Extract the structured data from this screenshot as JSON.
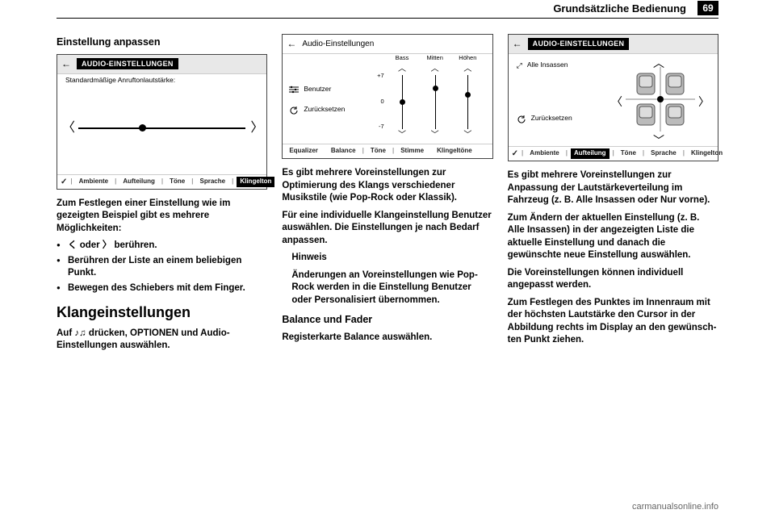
{
  "header": {
    "section_title": "Grundsätzliche Bedienung",
    "page_number": "69"
  },
  "col1": {
    "h3_adjust": "Einstellung anpassen",
    "ss1": {
      "title": "AUDIO-EINSTELLUNGEN",
      "subtitle": "Standardmäßige Anruftonlautstärke:",
      "slider_pos_pct": 36,
      "tabs": {
        "check": "✓",
        "t1": "Ambiente",
        "t2": "Aufteilung",
        "t3": "Töne",
        "t4": "Sprache",
        "t5": "Klingelton"
      }
    },
    "p1": "Zum Festlegen einer Einstellung wie im gezeigten Beispiel gibt es mehrere Möglichkeiten:",
    "li1": "く oder 〉 berühren.",
    "li2": "Berühren der Liste an einem beliebigen Punkt.",
    "li3": "Bewegen des Schiebers mit dem Finger.",
    "h2_sound": "Klangeinstellungen",
    "p2": "Auf ♪♫ drücken, OPTIONEN und Audio-Einstellungen auswählen."
  },
  "col2": {
    "ss2": {
      "title": "Audio-Einstellungen",
      "left_user": "Benutzer",
      "left_reset": "Zurücksetzen",
      "axis": {
        "top": "+7",
        "mid": "0",
        "bot": "-7"
      },
      "cols": [
        {
          "label": "Bass",
          "knob_pct": 48
        },
        {
          "label": "Mitten",
          "knob_pct": 20
        },
        {
          "label": "Höhen",
          "knob_pct": 34
        }
      ],
      "tabs": {
        "t1": "Equalizer",
        "t2": "Balance",
        "t3": "Töne",
        "t4": "Stimme",
        "t5": "Klingeltöne"
      }
    },
    "p1": "Es gibt mehrere Voreinstellungen zur Optimierung des Klangs verschiede­ner Musikstile (wie Pop-Rock oder Klassik).",
    "p2": "Für eine individuelle Klangeinstellung Benutzer auswählen. Die Einstellun­gen je nach Bedarf anpassen.",
    "note_h": "Hinweis",
    "note_body": "Änderungen an Voreinstellungen wie Pop-Rock werden in die Einstel­lung Benutzer oder Personalisiert übernommen.",
    "h3_bf": "Balance und Fader",
    "p3": "Registerkarte Balance auswählen."
  },
  "col3": {
    "ss3": {
      "title": "AUDIO-EINSTELLUNGEN",
      "left_all": "Alle Insassen",
      "left_reset": "Zurücksetzen",
      "tabs": {
        "check": "✓",
        "t1": "Ambiente",
        "t2": "Aufteilung",
        "t3": "Töne",
        "t4": "Sprache",
        "t5": "Klingelton"
      }
    },
    "p1": "Es gibt mehrere Voreinstellungen zur Anpassung der Lautstärkeverteilung im Fahrzeug (z. B. Alle Insassen oder Nur vorne).",
    "p2": "Zum Ändern der aktuellen Einstellung (z. B. Alle Insassen) in der angezeig­ten Liste die aktuelle Einstellung und danach die gewünschte neue Einstel­lung auswählen.",
    "p3": "Die Voreinstellungen können indivi­duell angepasst werden.",
    "p4": "Zum Festlegen des Punktes im Innenraum mit der höchsten Laut­stärke den Cursor in der Abbildung rechts im Display an den gewünsch­ten Punkt ziehen."
  },
  "footer": "carmanualsonline.info"
}
